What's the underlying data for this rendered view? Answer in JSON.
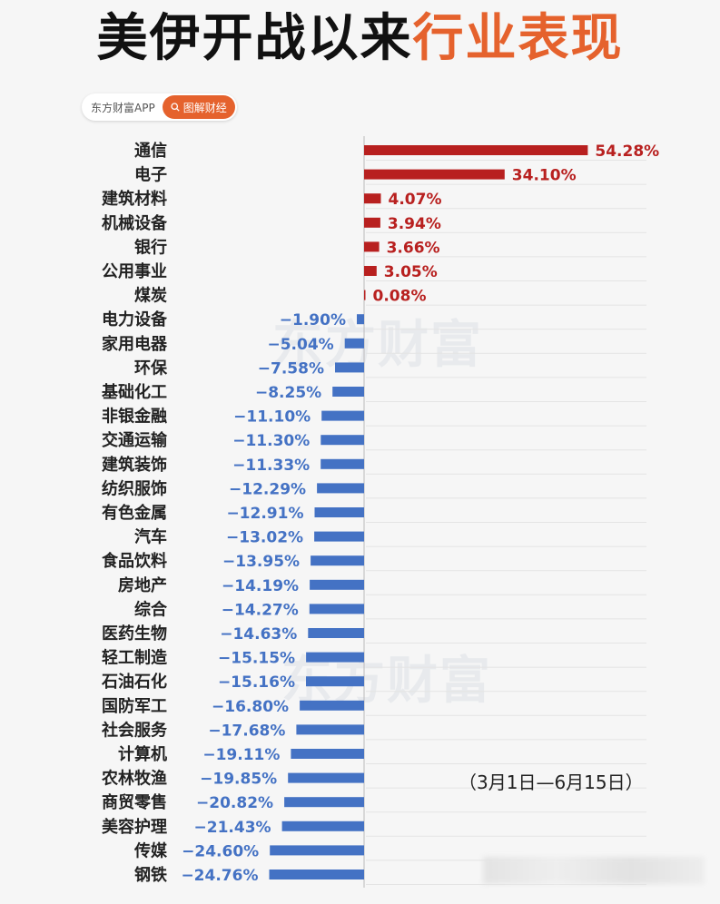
{
  "title": {
    "part1": "美伊开战以来",
    "part2": "行业表现"
  },
  "source_badge": {
    "source": "东方财富APP",
    "button_label": "图解财经",
    "icon": "search-icon"
  },
  "watermark": "东方财富",
  "date_range": "（3月1日—6月15日）",
  "colors": {
    "positive": "#b8201f",
    "negative": "#4472c4",
    "accent": "#e5622d"
  },
  "chart_data": {
    "type": "bar",
    "orientation": "horizontal",
    "categories": [
      "通信",
      "电子",
      "建筑材料",
      "机械设备",
      "银行",
      "公用事业",
      "煤炭",
      "电力设备",
      "家用电器",
      "环保",
      "基础化工",
      "非银金融",
      "交通运输",
      "建筑装饰",
      "纺织服饰",
      "有色金属",
      "汽车",
      "食品饮料",
      "房地产",
      "综合",
      "医药生物",
      "轻工制造",
      "石油石化",
      "国防军工",
      "社会服务",
      "计算机",
      "农林牧渔",
      "商贸零售",
      "美容护理",
      "传媒",
      "钢铁"
    ],
    "values": [
      54.28,
      34.1,
      4.07,
      3.94,
      3.66,
      3.05,
      0.08,
      -1.9,
      -5.04,
      -7.58,
      -8.25,
      -11.1,
      -11.3,
      -11.33,
      -12.29,
      -12.91,
      -13.02,
      -13.95,
      -14.19,
      -14.27,
      -14.63,
      -15.15,
      -15.16,
      -16.8,
      -17.68,
      -19.11,
      -19.85,
      -20.82,
      -21.43,
      -24.6,
      -24.76
    ],
    "labels": [
      "54.28%",
      "34.10%",
      "4.07%",
      "3.94%",
      "3.66%",
      "3.05%",
      "0.08%",
      "−1.90%",
      "−5.04%",
      "−7.58%",
      "−8.25%",
      "−11.10%",
      "−11.30%",
      "−11.33%",
      "−12.29%",
      "−12.91%",
      "−13.02%",
      "−13.95%",
      "−14.19%",
      "−14.27%",
      "−14.63%",
      "−15.15%",
      "−15.16%",
      "−16.80%",
      "−17.68%",
      "−19.11%",
      "−19.85%",
      "−20.82%",
      "−21.43%",
      "−24.60%",
      "−24.76%"
    ],
    "unit": "%"
  }
}
